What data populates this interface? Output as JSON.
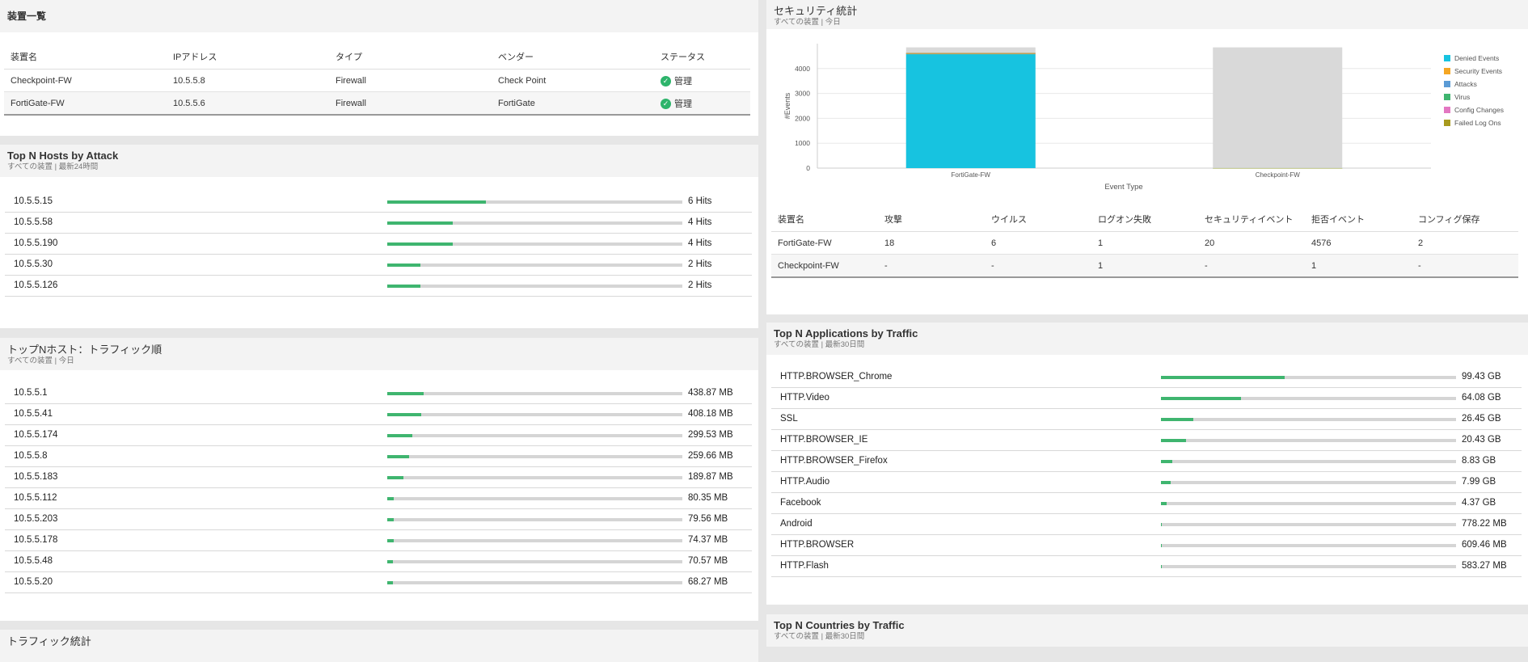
{
  "device_list": {
    "title": "装置一覧",
    "columns": [
      "装置名",
      "IPアドレス",
      "タイプ",
      "ベンダー",
      "ステータス"
    ],
    "rows": [
      [
        "Checkpoint-FW",
        "10.5.5.8",
        "Firewall",
        "Check Point",
        "管理"
      ],
      [
        "FortiGate-FW",
        "10.5.5.6",
        "Firewall",
        "FortiGate",
        "管理"
      ]
    ]
  },
  "hosts_by_attack": {
    "title": "Top N Hosts by Attack",
    "subtitle": "すべての装置 | 最新24時間",
    "items": [
      {
        "label": "10.5.5.15",
        "value": "6 Hits",
        "fraction": 0.333
      },
      {
        "label": "10.5.5.58",
        "value": "4 Hits",
        "fraction": 0.222
      },
      {
        "label": "10.5.5.190",
        "value": "4 Hits",
        "fraction": 0.222
      },
      {
        "label": "10.5.5.30",
        "value": "2 Hits",
        "fraction": 0.111
      },
      {
        "label": "10.5.5.126",
        "value": "2 Hits",
        "fraction": 0.111
      }
    ]
  },
  "hosts_by_traffic": {
    "title": "トップNホスト：トラフィック順",
    "subtitle": "すべての装置 | 今日",
    "items": [
      {
        "label": "10.5.5.1",
        "value": "438.87 MB",
        "fraction": 0.124
      },
      {
        "label": "10.5.5.41",
        "value": "408.18 MB",
        "fraction": 0.115
      },
      {
        "label": "10.5.5.174",
        "value": "299.53 MB",
        "fraction": 0.085
      },
      {
        "label": "10.5.5.8",
        "value": "259.66 MB",
        "fraction": 0.073
      },
      {
        "label": "10.5.5.183",
        "value": "189.87 MB",
        "fraction": 0.054
      },
      {
        "label": "10.5.5.112",
        "value": "80.35 MB",
        "fraction": 0.023
      },
      {
        "label": "10.5.5.203",
        "value": "79.56 MB",
        "fraction": 0.022
      },
      {
        "label": "10.5.5.178",
        "value": "74.37 MB",
        "fraction": 0.021
      },
      {
        "label": "10.5.5.48",
        "value": "70.57 MB",
        "fraction": 0.02
      },
      {
        "label": "10.5.5.20",
        "value": "68.27 MB",
        "fraction": 0.019
      }
    ]
  },
  "traffic_stats": {
    "title": "トラフィック統計"
  },
  "security_stats": {
    "title": "セキュリティ統計",
    "subtitle": "すべての装置 | 今日",
    "columns": [
      "装置名",
      "攻撃",
      "ウイルス",
      "ログオン失敗",
      "セキュリティイベント",
      "拒否イベント",
      "コンフィグ保存"
    ],
    "rows": [
      [
        "FortiGate-FW",
        "18",
        "6",
        "1",
        "20",
        "4576",
        "2"
      ],
      [
        "Checkpoint-FW",
        "-",
        "-",
        "1",
        "-",
        "1",
        "-"
      ]
    ]
  },
  "chart_data": {
    "type": "bar",
    "stacked": true,
    "categories": [
      "FortiGate-FW",
      "Checkpoint-FW"
    ],
    "xlabel": "Event Type",
    "ylabel": "#Events",
    "ylim": [
      0,
      5000
    ],
    "yticks": [
      0,
      1000,
      2000,
      3000,
      4000
    ],
    "grid": true,
    "legend_position": "right",
    "series": [
      {
        "name": "Denied Events",
        "color": "#17c3e0",
        "values": [
          4576,
          1
        ]
      },
      {
        "name": "Security Events",
        "color": "#f5a623",
        "values": [
          20,
          0
        ]
      },
      {
        "name": "Attacks",
        "color": "#5b9bd5",
        "values": [
          18,
          0
        ]
      },
      {
        "name": "Virus",
        "color": "#3fb56f",
        "values": [
          6,
          0
        ]
      },
      {
        "name": "Config Changes",
        "color": "#e377c2",
        "values": [
          2,
          0
        ]
      },
      {
        "name": "Failed Log Ons",
        "color": "#a89a1e",
        "values": [
          1,
          1
        ]
      }
    ],
    "background_stack_color": "#d9d9d9",
    "background_totals": [
      4850,
      4850
    ]
  },
  "apps_by_traffic": {
    "title": "Top N Applications by Traffic",
    "subtitle": "すべての装置 | 最新30日間",
    "items": [
      {
        "label": "HTTP.BROWSER_Chrome",
        "value": "99.43 GB",
        "fraction": 0.42
      },
      {
        "label": "HTTP.Video",
        "value": "64.08 GB",
        "fraction": 0.27
      },
      {
        "label": "SSL",
        "value": "26.45 GB",
        "fraction": 0.11
      },
      {
        "label": "HTTP.BROWSER_IE",
        "value": "20.43 GB",
        "fraction": 0.086
      },
      {
        "label": "HTTP.BROWSER_Firefox",
        "value": "8.83 GB",
        "fraction": 0.037
      },
      {
        "label": "HTTP.Audio",
        "value": "7.99 GB",
        "fraction": 0.034
      },
      {
        "label": "Facebook",
        "value": "4.37 GB",
        "fraction": 0.018
      },
      {
        "label": "Android",
        "value": "778.22 MB",
        "fraction": 0.003
      },
      {
        "label": "HTTP.BROWSER",
        "value": "609.46 MB",
        "fraction": 0.003
      },
      {
        "label": "HTTP.Flash",
        "value": "583.27 MB",
        "fraction": 0.002
      }
    ]
  },
  "countries_by_traffic": {
    "title": "Top N Countries by Traffic",
    "subtitle": "すべての装置 | 最新30日間"
  },
  "colors": {
    "bar_fill": "#3fb56f",
    "bar_track": "#d5d5d5",
    "status_ok": "#2db46b"
  },
  "icons": {
    "status": "check-circle-icon"
  }
}
